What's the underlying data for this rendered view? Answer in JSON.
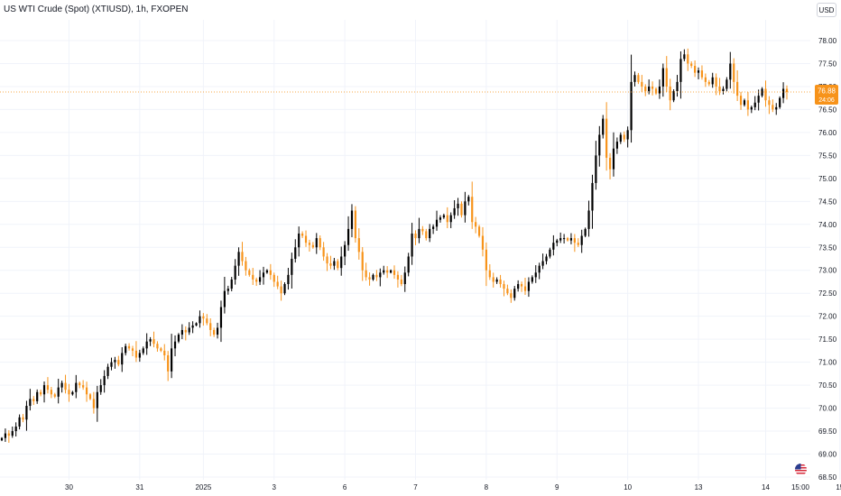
{
  "header": {
    "title": "US WTI Crude (Spot) (XTIUSD), 1h, FXOPEN",
    "currency_button": "USD"
  },
  "price_label": {
    "price": "76.88",
    "countdown": "24:06",
    "color": "#f7931a"
  },
  "colors": {
    "up": "#000000",
    "down": "#f7931a",
    "grid": "#f0f3fa",
    "axis_text": "#131722"
  },
  "chart_data": {
    "type": "candlestick",
    "interval": "1h",
    "symbol": "XTIUSD",
    "ylim": [
      68.5,
      78.25
    ],
    "y_ticks": [
      "78.00",
      "77.50",
      "77.00",
      "76.50",
      "76.00",
      "75.50",
      "75.00",
      "74.50",
      "74.00",
      "73.50",
      "73.00",
      "72.50",
      "72.00",
      "71.50",
      "71.00",
      "70.50",
      "70.00",
      "69.50",
      "69.00",
      "68.50"
    ],
    "x_ticks": [
      "30",
      "31",
      "2025",
      "3",
      "6",
      "7",
      "8",
      "9",
      "10",
      "13",
      "14",
      "15",
      "15:00"
    ],
    "last_price": 76.88,
    "up_color": "#000000",
    "down_color": "#f7931a",
    "closes": [
      69.35,
      69.45,
      69.4,
      69.5,
      69.6,
      69.8,
      69.75,
      70.05,
      70.2,
      70.15,
      70.35,
      70.3,
      70.5,
      70.4,
      70.3,
      70.25,
      70.45,
      70.55,
      70.4,
      70.3,
      70.35,
      70.55,
      70.5,
      70.45,
      70.3,
      70.2,
      70.0,
      70.35,
      70.5,
      70.7,
      70.9,
      71.0,
      71.05,
      70.95,
      71.2,
      71.35,
      71.3,
      71.25,
      71.1,
      71.2,
      71.3,
      71.45,
      71.5,
      71.4,
      71.3,
      71.25,
      71.15,
      70.8,
      71.3,
      71.45,
      71.6,
      71.7,
      71.65,
      71.75,
      71.8,
      71.85,
      72.0,
      71.95,
      71.85,
      71.7,
      71.6,
      71.75,
      72.2,
      72.55,
      72.6,
      72.8,
      73.1,
      73.4,
      73.2,
      73.0,
      72.9,
      72.8,
      72.75,
      72.85,
      72.95,
      73.0,
      72.9,
      72.75,
      72.65,
      72.5,
      72.7,
      72.9,
      73.25,
      73.5,
      73.8,
      73.75,
      73.6,
      73.55,
      73.5,
      73.7,
      73.5,
      73.3,
      73.15,
      73.1,
      73.2,
      73.05,
      73.3,
      73.55,
      73.9,
      74.3,
      73.7,
      73.4,
      73.0,
      72.85,
      72.8,
      72.9,
      72.85,
      72.95,
      73.0,
      72.95,
      73.0,
      72.9,
      72.8,
      72.7,
      72.95,
      73.3,
      73.8,
      73.7,
      73.9,
      73.85,
      73.7,
      73.9,
      73.95,
      74.1,
      74.15,
      74.2,
      74.05,
      74.2,
      74.35,
      74.45,
      74.2,
      74.5,
      74.6,
      74.05,
      73.95,
      73.75,
      73.45,
      73.0,
      72.85,
      72.75,
      72.8,
      72.7,
      72.6,
      72.5,
      72.4,
      72.6,
      72.7,
      72.65,
      72.55,
      72.75,
      72.85,
      72.95,
      73.1,
      73.2,
      73.3,
      73.45,
      73.6,
      73.65,
      73.7,
      73.7,
      73.65,
      73.7,
      73.6,
      73.55,
      73.75,
      73.9,
      74.3,
      74.9,
      75.5,
      75.95,
      76.3,
      75.45,
      75.2,
      75.65,
      75.8,
      75.95,
      75.85,
      76.05,
      77.1,
      77.25,
      77.1,
      77.0,
      76.9,
      77.0,
      76.95,
      76.85,
      77.0,
      77.4,
      77.0,
      76.7,
      76.9,
      77.1,
      77.6,
      77.7,
      77.5,
      77.45,
      77.3,
      77.35,
      77.2,
      77.1,
      77.05,
      77.2,
      77.0,
      76.9,
      76.95,
      77.15,
      77.5,
      77.1,
      76.8,
      76.6,
      76.7,
      76.5,
      76.55,
      76.65,
      76.8,
      76.95,
      76.7,
      76.6,
      76.5,
      76.55,
      76.75,
      76.95,
      76.88
    ],
    "day_breaks": [
      {
        "label": "30",
        "index": 19
      },
      {
        "label": "31",
        "index": 39
      },
      {
        "label": "2025",
        "index": 57
      },
      {
        "label": "3",
        "index": 77
      },
      {
        "label": "6",
        "index": 97
      },
      {
        "label": "7",
        "index": 117
      },
      {
        "label": "8",
        "index": 137
      },
      {
        "label": "9",
        "index": 157
      },
      {
        "label": "10",
        "index": 177
      },
      {
        "label": "13",
        "index": 197
      },
      {
        "label": "14",
        "index": 216
      },
      {
        "label": "15",
        "index": 237
      },
      {
        "label": "15:00",
        "index": 249
      }
    ]
  }
}
